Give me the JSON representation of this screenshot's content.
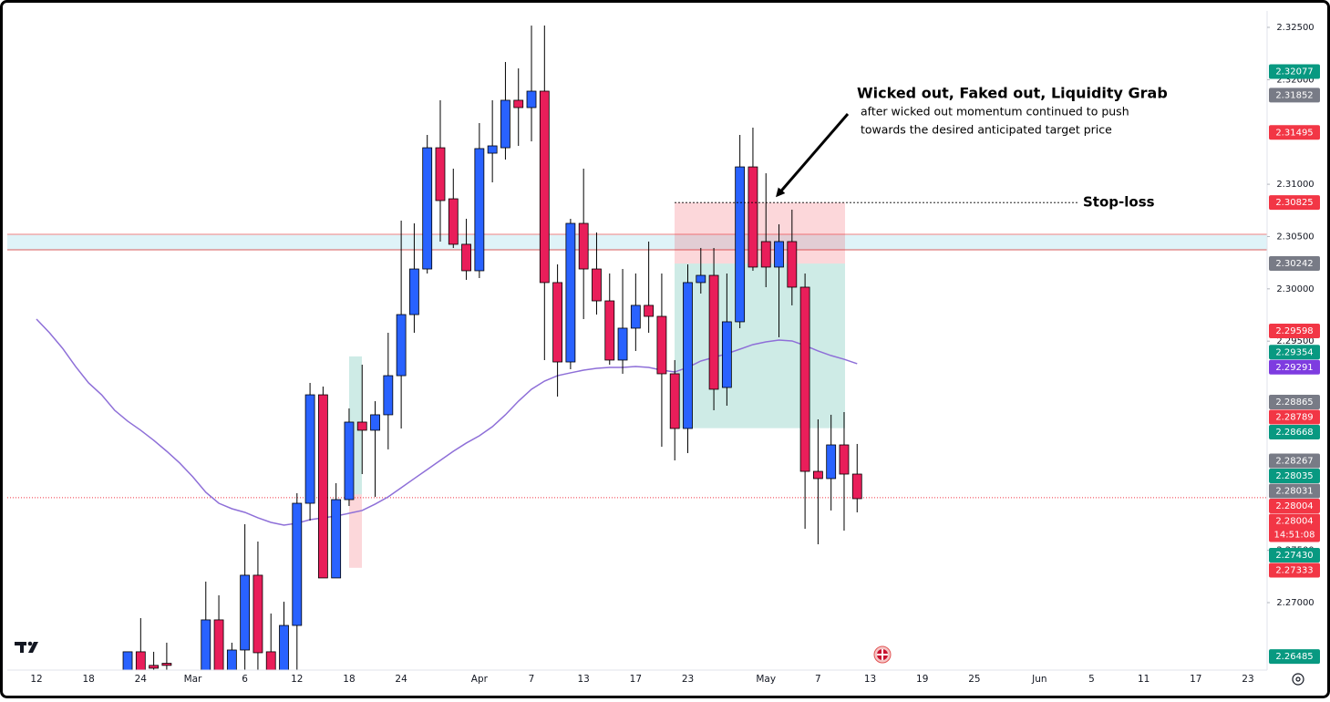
{
  "chart_data": {
    "type": "candlestick",
    "categories": [
      "12",
      null,
      null,
      null,
      "18",
      null,
      null,
      null,
      "24",
      null,
      null,
      null,
      "Mar",
      null,
      null,
      null,
      "6",
      null,
      null,
      null,
      "12",
      null,
      null,
      null,
      "18",
      null,
      null,
      null,
      "24",
      null,
      null,
      null,
      null,
      null,
      "Apr",
      null,
      null,
      null,
      "7",
      null,
      null,
      null,
      "13",
      null,
      null,
      null,
      "17",
      null,
      null,
      null,
      "23",
      null,
      null,
      null,
      null,
      null,
      "May",
      null,
      null,
      null,
      "7",
      null,
      null,
      null,
      "13",
      null,
      null,
      null,
      "19",
      null,
      null,
      null,
      "25",
      null,
      null,
      null,
      null,
      "Jun",
      null,
      null,
      null,
      "5",
      null,
      null,
      null,
      "11",
      null,
      null,
      null,
      "17",
      null,
      null,
      null,
      "23"
    ],
    "open": [
      null,
      null,
      null,
      null,
      null,
      null,
      null,
      2.263,
      2.2653,
      2.264,
      2.2642,
      null,
      null,
      2.263,
      2.26835,
      2.263,
      2.26547,
      2.27262,
      2.2653,
      2.263,
      2.26782,
      2.2795,
      2.28987,
      2.27236,
      2.27985,
      2.28726,
      2.28648,
      2.28796,
      2.2917,
      2.29754,
      2.3019,
      2.31349,
      2.30861,
      2.30426,
      2.30173,
      2.31297,
      2.31349,
      2.31803,
      2.31733,
      2.3189,
      2.3006,
      2.29301,
      2.30626,
      2.3019,
      2.29885,
      2.29319,
      2.29624,
      2.29842,
      2.29737,
      2.29188,
      2.28665,
      2.3006,
      2.30129,
      2.29057,
      2.29685,
      2.31166,
      2.30452,
      2.30208,
      2.30452,
      2.30016,
      2.28255,
      2.28186,
      2.28508,
      2.28229,
      null,
      null,
      null,
      null,
      null,
      null,
      null,
      null,
      null,
      null,
      null,
      null,
      null,
      null,
      null,
      null,
      null,
      null,
      null,
      null,
      null,
      null,
      null,
      null,
      null,
      null,
      null,
      null,
      null,
      null
    ],
    "high": [
      null,
      null,
      null,
      null,
      null,
      null,
      null,
      2.2653,
      2.26852,
      2.2653,
      2.26617,
      null,
      null,
      2.27201,
      2.2707,
      2.26617,
      2.2775,
      2.27584,
      2.26896,
      2.27009,
      2.28046,
      2.29101,
      2.29066,
      2.28142,
      2.28857,
      2.29275,
      2.28926,
      2.2958,
      2.30652,
      2.30626,
      2.31472,
      2.31803,
      2.31149,
      2.3067,
      2.31585,
      2.31803,
      2.32169,
      2.32108,
      2.32517,
      2.32517,
      2.30234,
      2.3067,
      2.31149,
      2.30539,
      2.30147,
      2.3019,
      2.30147,
      2.30452,
      2.30147,
      2.29319,
      2.30234,
      2.30391,
      2.30391,
      2.30147,
      2.31472,
      2.31541,
      2.31105,
      2.30617,
      2.30757,
      2.30147,
      2.28752,
      2.28796,
      2.28822,
      2.28517,
      null,
      null,
      null,
      null,
      null,
      null,
      null,
      null,
      null,
      null,
      null,
      null,
      null,
      null,
      null,
      null,
      null,
      null,
      null,
      null,
      null,
      null,
      null,
      null,
      null,
      null,
      null,
      null,
      null,
      null
    ],
    "low": [
      null,
      null,
      null,
      null,
      null,
      null,
      null,
      2.2625,
      2.2625,
      2.2625,
      2.2625,
      null,
      null,
      2.2625,
      2.2625,
      2.2625,
      2.263,
      2.263,
      2.2625,
      2.2625,
      2.263,
      2.27785,
      2.27236,
      2.27236,
      2.27924,
      2.28229,
      2.28011,
      2.28465,
      2.28665,
      2.2958,
      2.30147,
      2.30452,
      2.30391,
      2.30086,
      2.30103,
      2.31018,
      2.31236,
      2.31367,
      2.3141,
      2.29319,
      2.2897,
      2.29231,
      2.29711,
      2.29754,
      2.29275,
      2.29188,
      2.29406,
      2.2958,
      2.28491,
      2.2836,
      2.2843,
      2.29955,
      2.28839,
      2.28883,
      2.29624,
      2.30173,
      2.30016,
      2.29537,
      2.29842,
      2.27706,
      2.27558,
      2.27881,
      2.27689,
      2.27863,
      null,
      null,
      null,
      null,
      null,
      null,
      null,
      null,
      null,
      null,
      null,
      null,
      null,
      null,
      null,
      null,
      null,
      null,
      null,
      null,
      null,
      null,
      null,
      null,
      null,
      null,
      null,
      null,
      null,
      null
    ],
    "close": [
      null,
      null,
      null,
      null,
      null,
      null,
      null,
      2.2653,
      2.263,
      2.26373,
      2.264,
      null,
      null,
      2.26835,
      2.263,
      2.26547,
      2.27262,
      2.26521,
      2.263,
      2.26782,
      2.2795,
      2.28987,
      2.27236,
      2.27985,
      2.28726,
      2.28648,
      2.28796,
      2.2917,
      2.29754,
      2.3019,
      2.31349,
      2.30844,
      2.30426,
      2.30173,
      2.31341,
      2.31367,
      2.31803,
      2.31733,
      2.3189,
      2.3006,
      2.29301,
      2.30626,
      2.3019,
      2.29885,
      2.29319,
      2.29624,
      2.29842,
      2.29737,
      2.29188,
      2.28665,
      2.3006,
      2.30129,
      2.2904,
      2.29685,
      2.31166,
      2.30208,
      2.30208,
      2.30452,
      2.30016,
      2.28255,
      2.28186,
      2.28508,
      2.28229,
      2.27994,
      null,
      null,
      null,
      null,
      null,
      null,
      null,
      null,
      null,
      null,
      null,
      null,
      null,
      null,
      null,
      null,
      null,
      null,
      null,
      null,
      null,
      null,
      null,
      null,
      null,
      null,
      null,
      null,
      null,
      null
    ],
    "up_color": "#2962ff",
    "down_color": "#e91e5a",
    "ma": {
      "color": "#8e6fd8",
      "values": [
        2.29711,
        2.2958,
        2.29432,
        2.29258,
        2.29101,
        2.28987,
        2.28839,
        2.28735,
        2.28648,
        2.28552,
        2.28447,
        2.28334,
        2.28203,
        2.28055,
        2.2795,
        2.27898,
        2.27863,
        2.27811,
        2.27767,
        2.27741,
        2.27759,
        2.27793,
        2.27811,
        2.27828,
        2.27854,
        2.27881,
        2.27942,
        2.28011,
        2.28098,
        2.28186,
        2.28273,
        2.2836,
        2.28447,
        2.28526,
        2.28595,
        2.28682,
        2.28796,
        2.28926,
        2.2904,
        2.29118,
        2.2917,
        2.29197,
        2.29223,
        2.2924,
        2.29249,
        2.29249,
        2.29258,
        2.29249,
        2.29223,
        2.29205,
        2.29249,
        2.2931,
        2.29345,
        2.2938,
        2.29423,
        2.29467,
        2.29493,
        2.2951,
        2.29502,
        2.29458,
        2.29406,
        2.29362,
        2.29327,
        2.29284,
        null,
        null,
        null,
        null,
        null,
        null,
        null,
        null,
        null,
        null,
        null,
        null,
        null,
        null,
        null,
        null,
        null,
        null,
        null,
        null,
        null,
        null,
        null,
        null,
        null,
        null,
        null,
        null,
        null,
        null
      ]
    },
    "ylim": [
      2.26355,
      2.32657
    ],
    "yticks": [
      {
        "value": 2.325,
        "label": "2.32500"
      },
      {
        "value": 2.32,
        "label": "2.32000"
      },
      {
        "value": 2.31,
        "label": "2.31000"
      },
      {
        "value": 2.305,
        "label": "2.30500"
      },
      {
        "value": 2.3,
        "label": "2.30000"
      },
      {
        "value": 2.295,
        "label": "2.29500"
      },
      {
        "value": 2.275,
        "label": "2.27500"
      },
      {
        "value": 2.27,
        "label": "2.27000"
      }
    ],
    "price_tags": [
      {
        "value": 2.32077,
        "label": "2.32077",
        "color": "#089981"
      },
      {
        "value": 2.31852,
        "label": "2.31852",
        "color": "#787b86"
      },
      {
        "value": 2.31495,
        "label": "2.31495",
        "color": "#f23645"
      },
      {
        "value": 2.30825,
        "label": "2.30825",
        "color": "#f23645"
      },
      {
        "value": 2.30242,
        "label": "2.30242",
        "color": "#787b86"
      },
      {
        "value": 2.29598,
        "label": "2.29598",
        "color": "#f23645"
      },
      {
        "value": 2.29354,
        "label": "2.29354",
        "color": "#089981"
      },
      {
        "value": 2.29291,
        "label": "2.29291",
        "color": "#7e3ce0"
      },
      {
        "value": 2.28865,
        "label": "2.28865",
        "color": "#787b86"
      },
      {
        "value": 2.28789,
        "label": "2.28789",
        "color": "#f23645"
      },
      {
        "value": 2.28668,
        "label": "2.28668",
        "color": "#089981"
      },
      {
        "value": 2.28267,
        "label": "2.28267",
        "color": "#787b86"
      },
      {
        "value": 2.28035,
        "label": "2.28035",
        "color": "#089981"
      },
      {
        "value": 2.28031,
        "label": "2.28031",
        "color": "#787b86"
      },
      {
        "value": 2.28004,
        "label": "2.28004",
        "color": "#f23645"
      },
      {
        "value": 2.28004,
        "label": "2.28004",
        "color": "#f23645",
        "countdown": "14:51:08"
      },
      {
        "value": 2.2743,
        "label": "2.27430",
        "color": "#089981"
      },
      {
        "value": 2.27333,
        "label": "2.27333",
        "color": "#f23645"
      },
      {
        "value": 2.26485,
        "label": "2.26485",
        "color": "#089981"
      }
    ],
    "zone": [
      2.30521,
      2.30373
    ],
    "positions": [
      {
        "stop": 2.30825,
        "entry": 2.30242,
        "target": 2.28668
      },
      {
        "stop": 2.27333,
        "entry": 2.28035,
        "target": 2.29354
      }
    ],
    "annotation": {
      "title": "Wicked out, Faked out, Liquidity Grab",
      "lines": [
        "after wicked out momentum continued to push",
        "towards the desired anticipated target price"
      ]
    },
    "stop_label": "Stop-loss"
  }
}
